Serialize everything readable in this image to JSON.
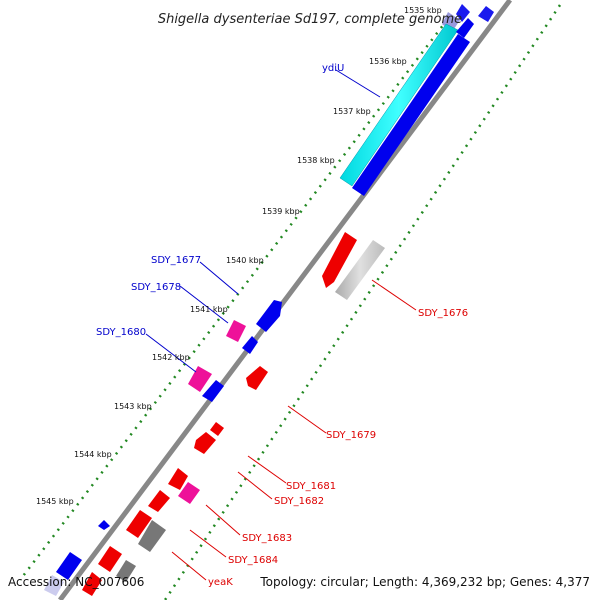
{
  "title": "Shigella dysenteriae Sd197, complete genome",
  "tick_labels": [
    "1535 kbp",
    "1536 kbp",
    "1537 kbp",
    "1538 kbp",
    "1539 kbp",
    "1540 kbp",
    "1541 kbp",
    "1542 kbp",
    "1543 kbp",
    "1544 kbp",
    "1545 kbp"
  ],
  "genes_plus_strand": [
    {
      "name": "ydiU",
      "color": "#0000ee"
    },
    {
      "name": "SDY_1677",
      "color": "#0000ee"
    },
    {
      "name": "SDY_1678",
      "color": "#0000ee"
    },
    {
      "name": "SDY_1680",
      "color": "#0000ee"
    }
  ],
  "genes_minus_strand": [
    {
      "name": "SDY_1676",
      "color": "#dd0000"
    },
    {
      "name": "SDY_1679",
      "color": "#dd0000"
    },
    {
      "name": "SDY_1681",
      "color": "#dd0000"
    },
    {
      "name": "SDY_1682",
      "color": "#dd0000"
    },
    {
      "name": "SDY_1683",
      "color": "#dd0000"
    },
    {
      "name": "SDY_1684",
      "color": "#dd0000"
    },
    {
      "name": "yeaK",
      "color": "#dd0000"
    }
  ],
  "feature_colors": {
    "cds_forward": "#0000ee",
    "cds_reverse": "#ee0000",
    "rna": "#ff3399",
    "highlight": "#00eeee",
    "other": "#999999",
    "gc_skew": "#228822",
    "backbone": "#888888"
  },
  "footer": {
    "accession": "Accession: NC_007606",
    "summary": "Topology: circular; Length: 4,369,232 bp; Genes: 4,377"
  }
}
